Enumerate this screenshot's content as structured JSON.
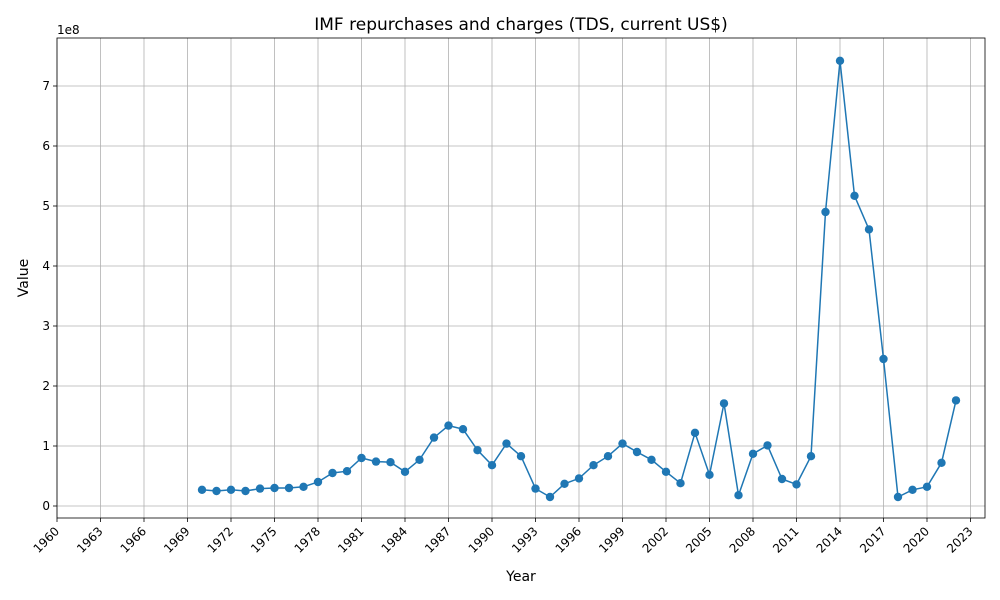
{
  "chart_data": {
    "type": "line",
    "title": "IMF repurchases and charges (TDS, current US$)",
    "xlabel": "Year",
    "ylabel": "Value",
    "y_offset_label": "1e8",
    "xlim": [
      1960,
      2024
    ],
    "ylim": [
      -20000000,
      780000000
    ],
    "x_ticks": [
      1960,
      1963,
      1966,
      1969,
      1972,
      1975,
      1978,
      1981,
      1984,
      1987,
      1990,
      1993,
      1996,
      1999,
      2002,
      2005,
      2008,
      2011,
      2014,
      2017,
      2020,
      2023
    ],
    "y_ticks": [
      {
        "value": 0,
        "label": "0"
      },
      {
        "value": 100000000,
        "label": "1"
      },
      {
        "value": 200000000,
        "label": "2"
      },
      {
        "value": 300000000,
        "label": "3"
      },
      {
        "value": 400000000,
        "label": "4"
      },
      {
        "value": 500000000,
        "label": "5"
      },
      {
        "value": 600000000,
        "label": "6"
      },
      {
        "value": 700000000,
        "label": "7"
      }
    ],
    "grid": true,
    "line_color": "#1f77b4",
    "series": [
      {
        "x": [
          1970,
          1971,
          1972,
          1973,
          1974,
          1975,
          1976,
          1977,
          1978,
          1979,
          1980,
          1981,
          1982,
          1983,
          1984,
          1985,
          1986,
          1987,
          1988,
          1989,
          1990,
          1991,
          1992,
          1993,
          1994,
          1995,
          1996,
          1997,
          1998,
          1999,
          2000,
          2001,
          2002,
          2003,
          2004,
          2005,
          2006,
          2007,
          2008,
          2009,
          2010,
          2011,
          2012,
          2013,
          2014,
          2015,
          2016,
          2017,
          2018,
          2019,
          2020,
          2021,
          2022
        ],
        "values": [
          27000000,
          25000000,
          27000000,
          25000000,
          29000000,
          30000000,
          30000000,
          32000000,
          40000000,
          55000000,
          58000000,
          80000000,
          74000000,
          73000000,
          57000000,
          77000000,
          114000000,
          134000000,
          128000000,
          93000000,
          68000000,
          104000000,
          83000000,
          29000000,
          15000000,
          37000000,
          46000000,
          68000000,
          83000000,
          104000000,
          90000000,
          77000000,
          57000000,
          38000000,
          122000000,
          52000000,
          171000000,
          18000000,
          87000000,
          101000000,
          45000000,
          36000000,
          83000000,
          490000000,
          742000000,
          517000000,
          461000000,
          245000000,
          15000000,
          27000000,
          32000000,
          72000000,
          176000000
        ]
      }
    ]
  }
}
